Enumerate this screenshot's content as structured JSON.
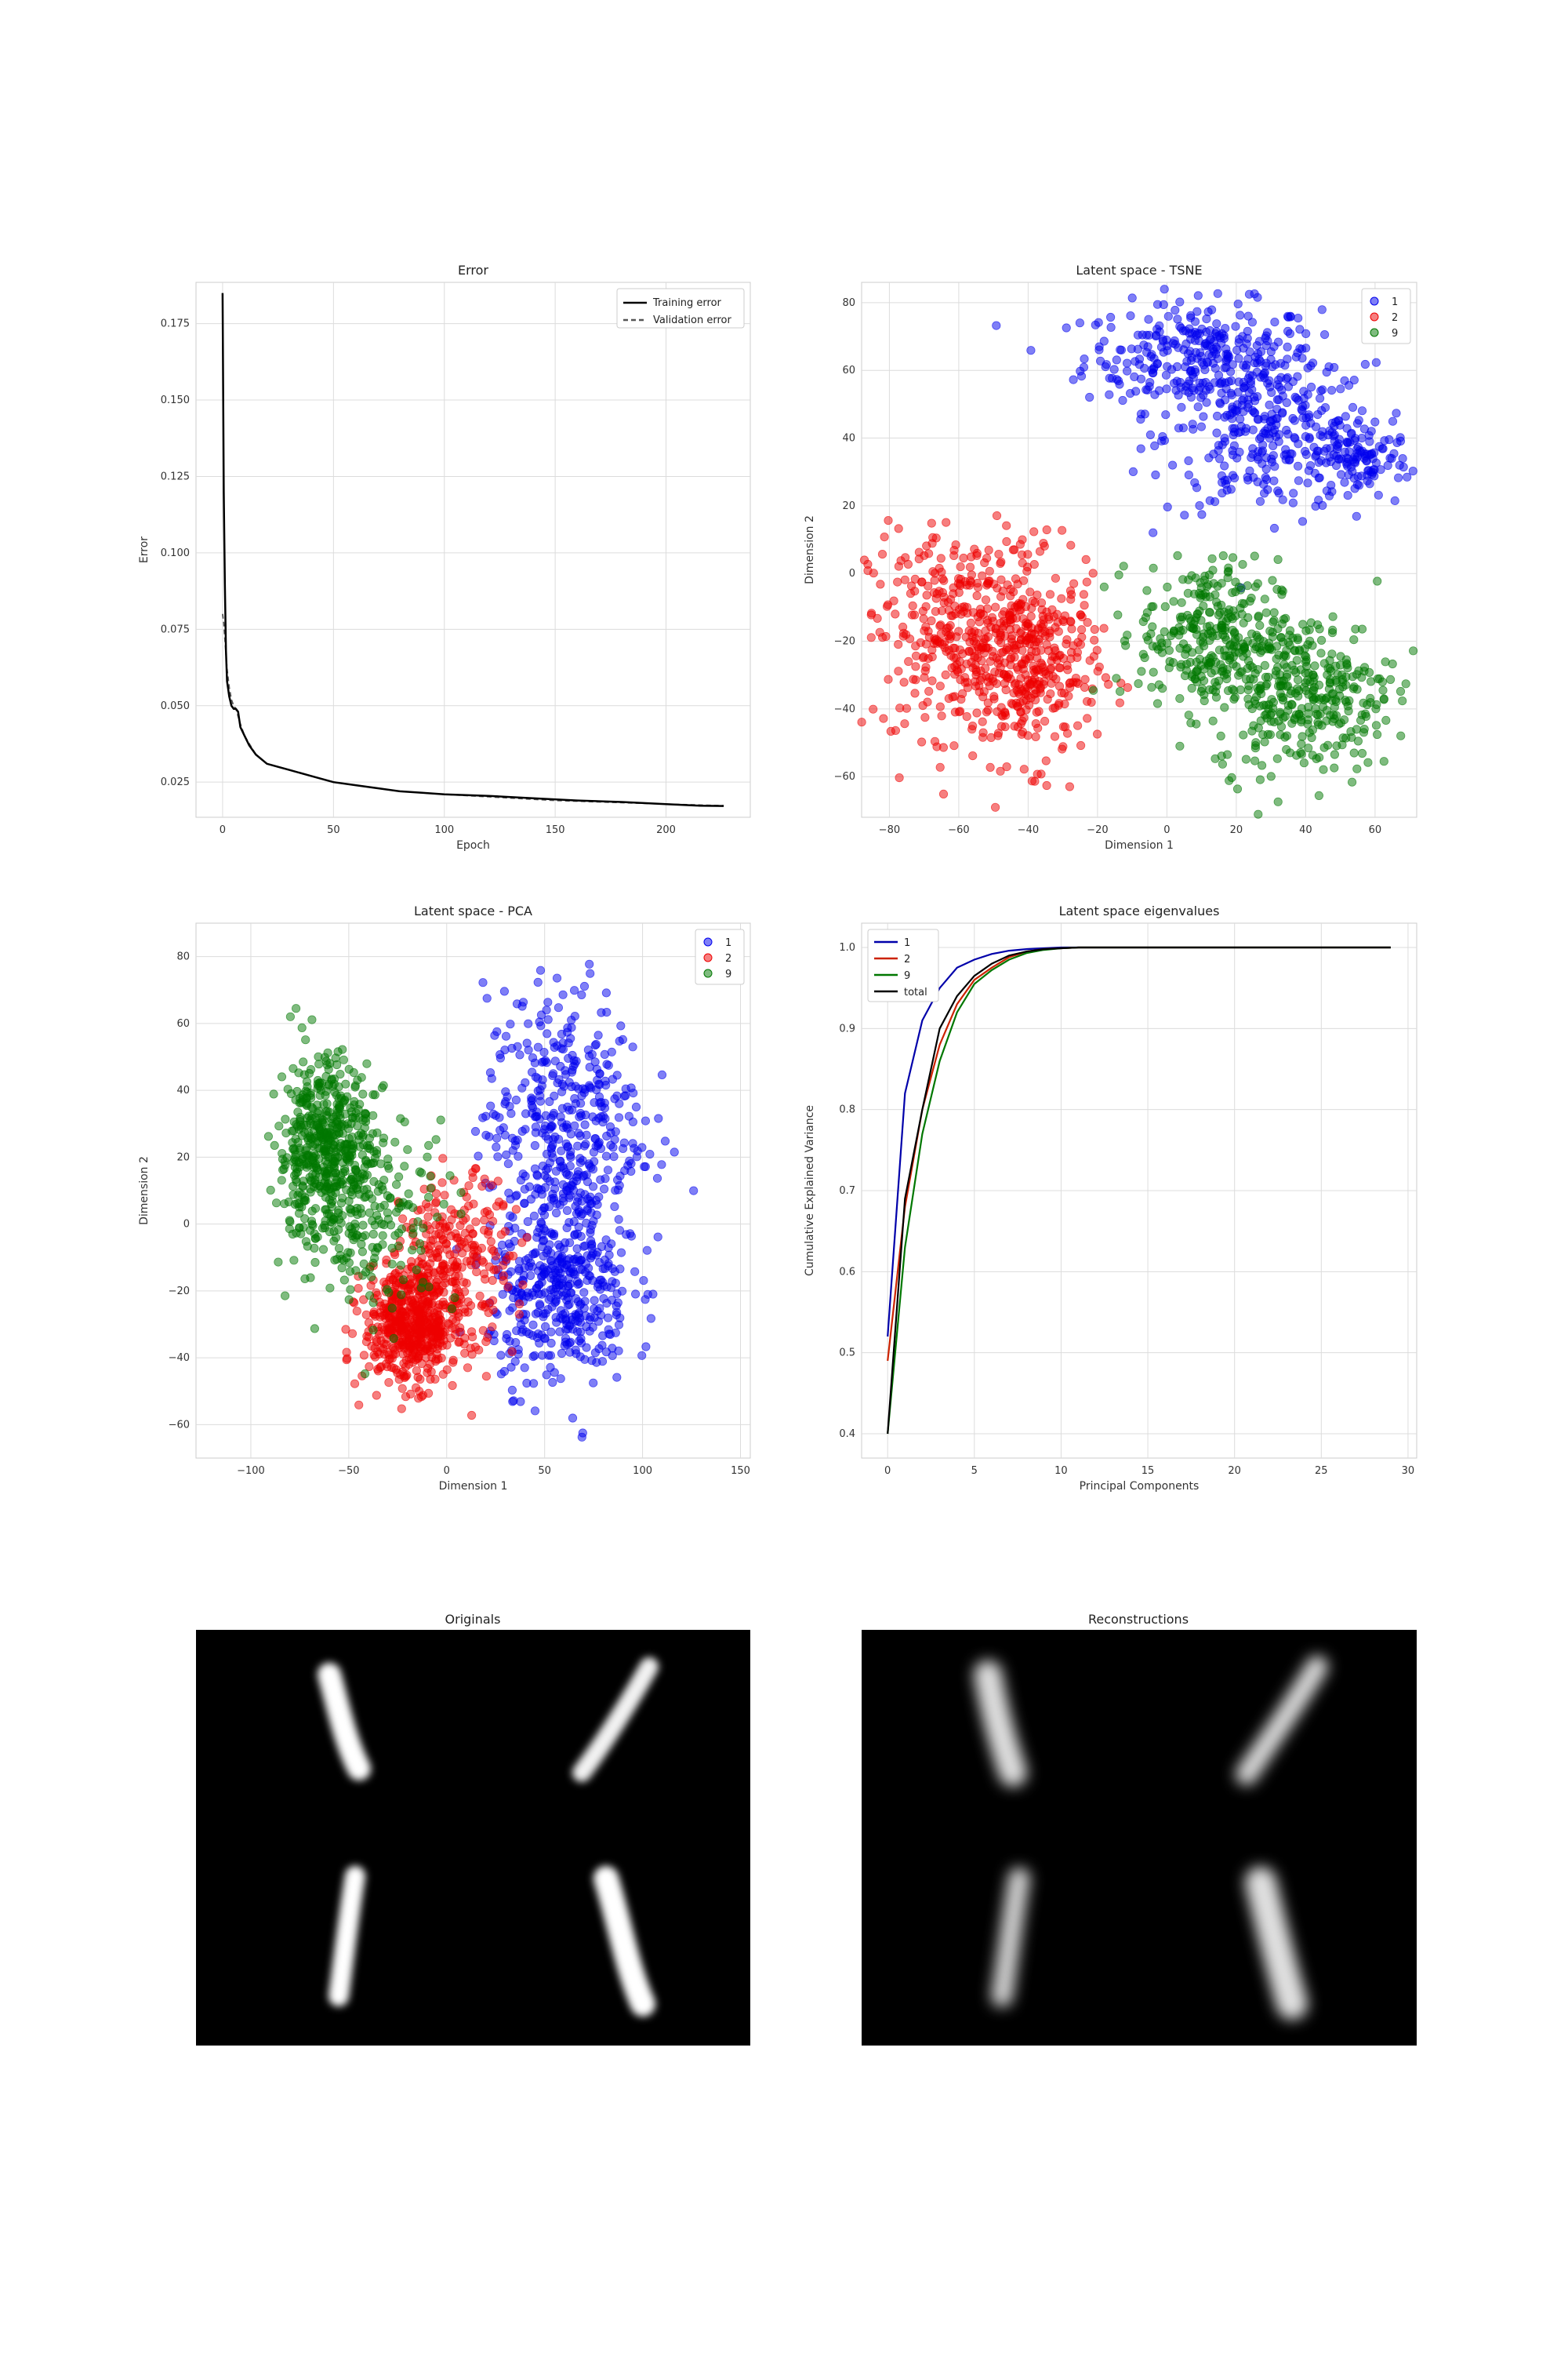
{
  "colors": {
    "blue": "#0000ee",
    "red": "#ee0000",
    "green": "#007700",
    "black": "#000000",
    "grid": "#dcdcdc"
  },
  "chart_data": [
    {
      "id": "error",
      "type": "line",
      "title": "Error",
      "xlabel": "Epoch",
      "ylabel": "Error",
      "xlim": [
        -12,
        238
      ],
      "ylim": [
        0.0135,
        0.1885
      ],
      "xticks": [
        0,
        50,
        100,
        150,
        200
      ],
      "xticklabels": [
        "0",
        "50",
        "100",
        "150",
        "200"
      ],
      "yticks": [
        0.025,
        0.05,
        0.075,
        0.1,
        0.125,
        0.15,
        0.175
      ],
      "yticklabels": [
        "0.025",
        "0.050",
        "0.075",
        "0.100",
        "0.125",
        "0.150",
        "0.175"
      ],
      "grid": true,
      "legend_position": "top-right",
      "series": [
        {
          "name": "Training error",
          "color": "#000000",
          "style": "solid",
          "x": [
            0,
            0.5,
            1,
            1.5,
            2,
            3,
            4,
            5,
            6,
            7,
            8,
            10,
            12,
            15,
            20,
            25,
            30,
            40,
            45,
            50,
            60,
            70,
            80,
            90,
            100,
            120,
            140,
            160,
            180,
            200,
            215,
            226
          ],
          "y": [
            0.185,
            0.12,
            0.09,
            0.068,
            0.058,
            0.053,
            0.05,
            0.049,
            0.049,
            0.048,
            0.043,
            0.04,
            0.037,
            0.034,
            0.031,
            0.03,
            0.029,
            0.027,
            0.026,
            0.025,
            0.024,
            0.023,
            0.022,
            0.0215,
            0.021,
            0.0205,
            0.0197,
            0.019,
            0.0185,
            0.0178,
            0.0173,
            0.0172
          ]
        },
        {
          "name": "Validation error",
          "color": "#555555",
          "style": "dashed",
          "x": [
            0,
            0.5,
            1,
            2,
            3,
            4,
            5,
            6,
            8,
            10,
            15,
            20,
            30,
            50,
            80,
            100,
            150,
            200,
            226
          ],
          "y": [
            0.08,
            0.077,
            0.072,
            0.062,
            0.056,
            0.052,
            0.05,
            0.049,
            0.044,
            0.04,
            0.034,
            0.031,
            0.029,
            0.025,
            0.022,
            0.021,
            0.019,
            0.0178,
            0.0173
          ]
        }
      ]
    },
    {
      "id": "tsne",
      "type": "scatter",
      "title": "Latent space - TSNE",
      "xlabel": "Dimension 1",
      "ylabel": "Dimension 2",
      "xlim": [
        -88,
        72
      ],
      "ylim": [
        -72,
        86
      ],
      "xticks": [
        -80,
        -60,
        -40,
        -20,
        0,
        20,
        40,
        60
      ],
      "xticklabels": [
        "−80",
        "−60",
        "−40",
        "−20",
        "0",
        "20",
        "40",
        "60"
      ],
      "yticks": [
        -60,
        -40,
        -20,
        0,
        20,
        40,
        60,
        80
      ],
      "yticklabels": [
        "−60",
        "−40",
        "−20",
        "0",
        "20",
        "40",
        "60",
        "80"
      ],
      "grid": true,
      "legend_position": "top-right",
      "series": [
        {
          "name": "1",
          "color": "#0000ee",
          "count": 700,
          "clusters": [
            {
              "cx": 10,
              "cy": 64,
              "sx": 17,
              "sy": 8,
              "w": 0.45
            },
            {
              "cx": 30,
              "cy": 40,
              "sx": 15,
              "sy": 11,
              "w": 0.4
            },
            {
              "cx": 56,
              "cy": 34,
              "sx": 7,
              "sy": 6,
              "w": 0.15
            }
          ]
        },
        {
          "name": "2",
          "color": "#ee0000",
          "count": 700,
          "clusters": [
            {
              "cx": -58,
              "cy": -18,
              "sx": 14,
              "sy": 15,
              "w": 0.6
            },
            {
              "cx": -38,
              "cy": -28,
              "sx": 9,
              "sy": 14,
              "w": 0.4
            }
          ]
        },
        {
          "name": "9",
          "color": "#007700",
          "count": 650,
          "clusters": [
            {
              "cx": 12,
              "cy": -18,
              "sx": 10,
              "sy": 11,
              "w": 0.45
            },
            {
              "cx": 40,
              "cy": -35,
              "sx": 13,
              "sy": 12,
              "w": 0.55
            }
          ]
        }
      ]
    },
    {
      "id": "pca",
      "type": "scatter",
      "title": "Latent space - PCA",
      "xlabel": "Dimension 1",
      "ylabel": "Dimension 2",
      "xlim": [
        -128,
        155
      ],
      "ylim": [
        -70,
        90
      ],
      "xticks": [
        -100,
        -50,
        0,
        50,
        100,
        150
      ],
      "xticklabels": [
        "−100",
        "−50",
        "0",
        "50",
        "100",
        "150"
      ],
      "yticks": [
        -60,
        -40,
        -20,
        0,
        20,
        40,
        60,
        80
      ],
      "yticklabels": [
        "−60",
        "−40",
        "−20",
        "0",
        "20",
        "40",
        "60",
        "80"
      ],
      "grid": true,
      "legend_position": "top-right",
      "series": [
        {
          "name": "1",
          "color": "#0000ee",
          "count": 850,
          "clusters": [
            {
              "cx": 60,
              "cy": 30,
              "sx": 20,
              "sy": 20,
              "w": 0.5
            },
            {
              "cx": 58,
              "cy": -20,
              "sx": 18,
              "sy": 14,
              "w": 0.5
            }
          ]
        },
        {
          "name": "2",
          "color": "#ee0000",
          "count": 800,
          "clusters": [
            {
              "cx": -18,
              "cy": -30,
              "sx": 12,
              "sy": 9,
              "w": 0.7
            },
            {
              "cx": 5,
              "cy": -10,
              "sx": 14,
              "sy": 12,
              "w": 0.3
            }
          ]
        },
        {
          "name": "9",
          "color": "#007700",
          "count": 700,
          "clusters": [
            {
              "cx": -62,
              "cy": 22,
              "sx": 12,
              "sy": 14,
              "w": 0.75
            },
            {
              "cx": -35,
              "cy": 5,
              "sx": 20,
              "sy": 15,
              "w": 0.25
            }
          ]
        }
      ]
    },
    {
      "id": "eigen",
      "type": "line",
      "title": "Latent space eigenvalues",
      "xlabel": "Principal Components",
      "ylabel": "Cumulative Explained Variance",
      "xlim": [
        -1.5,
        30.5
      ],
      "ylim": [
        0.37,
        1.03
      ],
      "xticks": [
        0,
        5,
        10,
        15,
        20,
        25,
        30
      ],
      "xticklabels": [
        "0",
        "5",
        "10",
        "15",
        "20",
        "25",
        "30"
      ],
      "yticks": [
        0.4,
        0.5,
        0.6,
        0.7,
        0.8,
        0.9,
        1.0
      ],
      "yticklabels": [
        "0.4",
        "0.5",
        "0.6",
        "0.7",
        "0.8",
        "0.9",
        "1.0"
      ],
      "grid": true,
      "legend_position": "top-left",
      "x": [
        0,
        1,
        2,
        3,
        4,
        5,
        6,
        7,
        8,
        9,
        10,
        11,
        12,
        13,
        14,
        15,
        16,
        17,
        18,
        19,
        20,
        21,
        22,
        23,
        24,
        25,
        26,
        27,
        28,
        29
      ],
      "series": [
        {
          "name": "1",
          "color": "#0000aa",
          "values": [
            0.52,
            0.82,
            0.91,
            0.95,
            0.975,
            0.985,
            0.992,
            0.996,
            0.998,
            0.999,
            1.0,
            1.0,
            1.0,
            1.0,
            1.0,
            1.0,
            1.0,
            1.0,
            1.0,
            1.0,
            1.0,
            1.0,
            1.0,
            1.0,
            1.0,
            1.0,
            1.0,
            1.0,
            1.0,
            1.0
          ]
        },
        {
          "name": "2",
          "color": "#cc2200",
          "values": [
            0.49,
            0.68,
            0.8,
            0.88,
            0.93,
            0.96,
            0.975,
            0.988,
            0.995,
            0.998,
            0.999,
            1.0,
            1.0,
            1.0,
            1.0,
            1.0,
            1.0,
            1.0,
            1.0,
            1.0,
            1.0,
            1.0,
            1.0,
            1.0,
            1.0,
            1.0,
            1.0,
            1.0,
            1.0,
            1.0
          ]
        },
        {
          "name": "9",
          "color": "#007700",
          "values": [
            0.4,
            0.63,
            0.77,
            0.86,
            0.92,
            0.955,
            0.972,
            0.985,
            0.993,
            0.997,
            0.999,
            1.0,
            1.0,
            1.0,
            1.0,
            1.0,
            1.0,
            1.0,
            1.0,
            1.0,
            1.0,
            1.0,
            1.0,
            1.0,
            1.0,
            1.0,
            1.0,
            1.0,
            1.0,
            1.0
          ]
        },
        {
          "name": "total",
          "color": "#000000",
          "values": [
            0.4,
            0.69,
            0.8,
            0.9,
            0.94,
            0.965,
            0.98,
            0.99,
            0.995,
            0.998,
            0.999,
            1.0,
            1.0,
            1.0,
            1.0,
            1.0,
            1.0,
            1.0,
            1.0,
            1.0,
            1.0,
            1.0,
            1.0,
            1.0,
            1.0,
            1.0,
            1.0,
            1.0,
            1.0,
            1.0
          ]
        }
      ]
    }
  ],
  "images": [
    {
      "id": "originals",
      "title": "Originals"
    },
    {
      "id": "reconstructions",
      "title": "Reconstructions"
    }
  ]
}
